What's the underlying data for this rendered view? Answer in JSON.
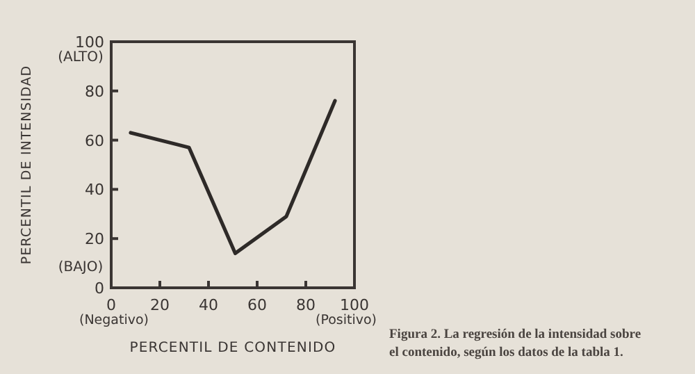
{
  "chart_data": {
    "type": "line",
    "xlabel": "PERCENTIL DE CONTENIDO",
    "ylabel": "PERCENTIL DE INTENSIDAD",
    "x": [
      8,
      32,
      51,
      72,
      92
    ],
    "series": [
      {
        "color": "#2e2a28",
        "values": [
          63,
          57,
          14,
          29,
          76
        ]
      }
    ],
    "xlim": [
      0,
      100
    ],
    "ylim": [
      0,
      100
    ],
    "xticks": [
      0,
      20,
      40,
      60,
      80,
      100
    ],
    "yticks": [
      0,
      20,
      40,
      60,
      80,
      100
    ],
    "annotations": [
      "(ALTO)",
      "(BAJO)",
      "(Negativo)",
      "(Positivo)",
      "Figura 2. La regresión de la intensidad sobre el contenido, según los datos de la tabla 1."
    ],
    "grid": false,
    "marker": "none",
    "line_style": "solid"
  }
}
